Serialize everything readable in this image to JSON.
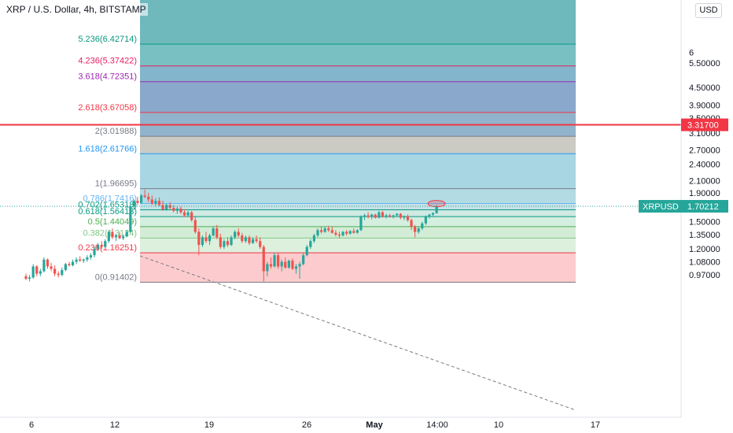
{
  "header": {
    "title": "XRP / U.S. Dollar, 4h, BITSTAMP",
    "currency_button": "USD"
  },
  "chart_data": {
    "type": "candlestick",
    "title": "XRP / U.S. Dollar, 4h, BITSTAMP",
    "y_scale": "log",
    "y_ticks": [
      "6",
      "5.50000",
      "4.50000",
      "3.90000",
      "3.50000",
      "3.10000",
      "2.70000",
      "2.40000",
      "2.10000",
      "1.90000",
      "1.70000",
      "1.50000",
      "1.35000",
      "1.20000",
      "1.08000",
      "0.97000"
    ],
    "y_tick_values": [
      6.0,
      5.5,
      4.5,
      3.9,
      3.5,
      3.1,
      2.7,
      2.4,
      2.1,
      1.9,
      1.7,
      1.5,
      1.35,
      1.2,
      1.08,
      0.97
    ],
    "x_ticks": [
      "6",
      "12",
      "19",
      "26",
      "May",
      "14:00",
      "10",
      "17"
    ],
    "fib_levels": [
      {
        "label": "0(0.91402)",
        "ratio": 0,
        "price": 0.91402,
        "color": "#787b86"
      },
      {
        "label": "0.236(1.16251)",
        "ratio": 0.236,
        "price": 1.16251,
        "color": "#f23645"
      },
      {
        "label": "0.382(1.3124)",
        "ratio": 0.382,
        "price": 1.3124,
        "color": "#81c784"
      },
      {
        "label": "0.5(1.44049)",
        "ratio": 0.5,
        "price": 1.44049,
        "color": "#4caf50"
      },
      {
        "label": "0.618(1.56413)",
        "ratio": 0.618,
        "price": 1.56413,
        "color": "#089981"
      },
      {
        "label": "0.702(1.65318)",
        "ratio": 0.702,
        "price": 1.65318,
        "color": "#089981"
      },
      {
        "label": "0.786(1.7416)",
        "ratio": 0.786,
        "price": 1.7416,
        "color": "#64b5f6"
      },
      {
        "label": "1(1.96695)",
        "ratio": 1,
        "price": 1.96695,
        "color": "#787b86"
      },
      {
        "label": "1.618(2.61766)",
        "ratio": 1.618,
        "price": 2.61766,
        "color": "#2196f3"
      },
      {
        "label": "2(3.01988)",
        "ratio": 2,
        "price": 3.01988,
        "color": "#787b86"
      },
      {
        "label": "2.618(3.67058)",
        "ratio": 2.618,
        "price": 3.67058,
        "color": "#f23645"
      },
      {
        "label": "3.618(4.72351)",
        "ratio": 3.618,
        "price": 4.72351,
        "color": "#9c27b0"
      },
      {
        "label": "4.236(5.37422)",
        "ratio": 4.236,
        "price": 5.37422,
        "color": "#e91e63"
      },
      {
        "label": "5.236(6.42714)",
        "ratio": 5.236,
        "price": 6.42714,
        "color": "#089981"
      }
    ],
    "horizontal_line": {
      "price": 3.317,
      "label": "3.31700",
      "color": "#f23645"
    },
    "last_price": {
      "symbol": "XRPUSD",
      "value": "1.70212",
      "price": 1.70212,
      "color": "#26a69a"
    },
    "candles": [
      [
        0.96,
        0.98,
        0.93,
        0.94
      ],
      [
        0.94,
        0.97,
        0.92,
        0.95
      ],
      [
        0.95,
        1.06,
        0.94,
        1.04
      ],
      [
        1.04,
        1.05,
        0.96,
        0.98
      ],
      [
        0.98,
        1.02,
        0.96,
        1.0
      ],
      [
        1.0,
        1.12,
        0.99,
        1.1
      ],
      [
        1.1,
        1.11,
        1.02,
        1.04
      ],
      [
        1.04,
        1.07,
        1.0,
        1.02
      ],
      [
        1.02,
        1.05,
        0.96,
        0.98
      ],
      [
        0.98,
        1.0,
        0.95,
        0.97
      ],
      [
        0.97,
        1.03,
        0.96,
        1.01
      ],
      [
        1.01,
        1.07,
        1.0,
        1.06
      ],
      [
        1.06,
        1.08,
        1.04,
        1.05
      ],
      [
        1.05,
        1.1,
        1.04,
        1.08
      ],
      [
        1.08,
        1.12,
        1.06,
        1.1
      ],
      [
        1.1,
        1.13,
        1.08,
        1.09
      ],
      [
        1.09,
        1.11,
        1.07,
        1.1
      ],
      [
        1.1,
        1.14,
        1.08,
        1.12
      ],
      [
        1.12,
        1.16,
        1.1,
        1.14
      ],
      [
        1.14,
        1.22,
        1.12,
        1.2
      ],
      [
        1.2,
        1.26,
        1.18,
        1.24
      ],
      [
        1.24,
        1.28,
        1.2,
        1.22
      ],
      [
        1.22,
        1.3,
        1.21,
        1.28
      ],
      [
        1.28,
        1.4,
        1.26,
        1.38
      ],
      [
        1.38,
        1.42,
        1.3,
        1.32
      ],
      [
        1.32,
        1.36,
        1.28,
        1.34
      ],
      [
        1.34,
        1.38,
        1.3,
        1.31
      ],
      [
        1.31,
        1.35,
        1.29,
        1.33
      ],
      [
        1.33,
        1.4,
        1.32,
        1.38
      ],
      [
        1.38,
        1.72,
        1.37,
        1.7
      ],
      [
        1.7,
        1.8,
        1.66,
        1.78
      ],
      [
        1.78,
        1.84,
        1.72,
        1.75
      ],
      [
        1.75,
        1.88,
        1.74,
        1.86
      ],
      [
        1.86,
        1.95,
        1.82,
        1.84
      ],
      [
        1.84,
        1.9,
        1.76,
        1.8
      ],
      [
        1.8,
        1.86,
        1.72,
        1.74
      ],
      [
        1.74,
        1.82,
        1.7,
        1.78
      ],
      [
        1.78,
        1.83,
        1.7,
        1.72
      ],
      [
        1.72,
        1.78,
        1.64,
        1.66
      ],
      [
        1.66,
        1.74,
        1.64,
        1.72
      ],
      [
        1.72,
        1.76,
        1.66,
        1.68
      ],
      [
        1.68,
        1.72,
        1.62,
        1.64
      ],
      [
        1.64,
        1.7,
        1.6,
        1.67
      ],
      [
        1.67,
        1.7,
        1.6,
        1.62
      ],
      [
        1.62,
        1.66,
        1.56,
        1.58
      ],
      [
        1.58,
        1.64,
        1.57,
        1.62
      ],
      [
        1.62,
        1.64,
        1.5,
        1.52
      ],
      [
        1.52,
        1.56,
        1.36,
        1.38
      ],
      [
        1.38,
        1.42,
        1.14,
        1.24
      ],
      [
        1.24,
        1.34,
        1.22,
        1.32
      ],
      [
        1.32,
        1.38,
        1.26,
        1.28
      ],
      [
        1.28,
        1.36,
        1.24,
        1.34
      ],
      [
        1.34,
        1.44,
        1.33,
        1.42
      ],
      [
        1.42,
        1.46,
        1.3,
        1.32
      ],
      [
        1.32,
        1.36,
        1.2,
        1.22
      ],
      [
        1.22,
        1.3,
        1.2,
        1.28
      ],
      [
        1.28,
        1.32,
        1.22,
        1.24
      ],
      [
        1.24,
        1.34,
        1.23,
        1.32
      ],
      [
        1.32,
        1.4,
        1.3,
        1.38
      ],
      [
        1.38,
        1.42,
        1.32,
        1.34
      ],
      [
        1.34,
        1.37,
        1.26,
        1.28
      ],
      [
        1.28,
        1.34,
        1.26,
        1.32
      ],
      [
        1.32,
        1.34,
        1.24,
        1.26
      ],
      [
        1.26,
        1.32,
        1.25,
        1.3
      ],
      [
        1.3,
        1.34,
        1.26,
        1.28
      ],
      [
        1.28,
        1.32,
        1.2,
        1.22
      ],
      [
        1.22,
        1.24,
        0.92,
        1.0
      ],
      [
        1.0,
        1.08,
        0.96,
        1.06
      ],
      [
        1.06,
        1.12,
        1.02,
        1.04
      ],
      [
        1.04,
        1.16,
        1.03,
        1.14
      ],
      [
        1.14,
        1.16,
        1.02,
        1.04
      ],
      [
        1.04,
        1.1,
        1.0,
        1.08
      ],
      [
        1.08,
        1.12,
        1.02,
        1.03
      ],
      [
        1.03,
        1.1,
        1.02,
        1.09
      ],
      [
        1.09,
        1.11,
        1.01,
        1.02
      ],
      [
        1.02,
        1.06,
        0.98,
        1.04
      ],
      [
        1.04,
        1.08,
        0.94,
        1.06
      ],
      [
        1.06,
        1.16,
        1.05,
        1.14
      ],
      [
        1.14,
        1.24,
        1.13,
        1.22
      ],
      [
        1.22,
        1.3,
        1.2,
        1.28
      ],
      [
        1.28,
        1.36,
        1.26,
        1.34
      ],
      [
        1.34,
        1.42,
        1.32,
        1.4
      ],
      [
        1.4,
        1.44,
        1.36,
        1.38
      ],
      [
        1.38,
        1.44,
        1.37,
        1.42
      ],
      [
        1.42,
        1.45,
        1.38,
        1.4
      ],
      [
        1.4,
        1.44,
        1.36,
        1.37
      ],
      [
        1.37,
        1.4,
        1.33,
        1.35
      ],
      [
        1.35,
        1.38,
        1.31,
        1.34
      ],
      [
        1.34,
        1.39,
        1.33,
        1.38
      ],
      [
        1.38,
        1.4,
        1.34,
        1.36
      ],
      [
        1.36,
        1.4,
        1.35,
        1.39
      ],
      [
        1.39,
        1.42,
        1.36,
        1.37
      ],
      [
        1.37,
        1.41,
        1.36,
        1.4
      ],
      [
        1.4,
        1.58,
        1.39,
        1.56
      ],
      [
        1.56,
        1.6,
        1.52,
        1.58
      ],
      [
        1.58,
        1.62,
        1.54,
        1.56
      ],
      [
        1.56,
        1.6,
        1.53,
        1.59
      ],
      [
        1.59,
        1.6,
        1.54,
        1.55
      ],
      [
        1.55,
        1.64,
        1.54,
        1.62
      ],
      [
        1.62,
        1.64,
        1.55,
        1.57
      ],
      [
        1.57,
        1.6,
        1.54,
        1.58
      ],
      [
        1.58,
        1.6,
        1.55,
        1.56
      ],
      [
        1.56,
        1.59,
        1.54,
        1.58
      ],
      [
        1.58,
        1.61,
        1.56,
        1.6
      ],
      [
        1.6,
        1.61,
        1.53,
        1.55
      ],
      [
        1.55,
        1.58,
        1.52,
        1.57
      ],
      [
        1.57,
        1.59,
        1.5,
        1.52
      ],
      [
        1.52,
        1.54,
        1.4,
        1.44
      ],
      [
        1.44,
        1.46,
        1.32,
        1.38
      ],
      [
        1.38,
        1.44,
        1.36,
        1.42
      ],
      [
        1.42,
        1.5,
        1.4,
        1.48
      ],
      [
        1.48,
        1.58,
        1.46,
        1.56
      ],
      [
        1.56,
        1.6,
        1.54,
        1.59
      ],
      [
        1.59,
        1.62,
        1.56,
        1.61
      ],
      [
        1.61,
        1.72,
        1.6,
        1.7
      ]
    ]
  }
}
